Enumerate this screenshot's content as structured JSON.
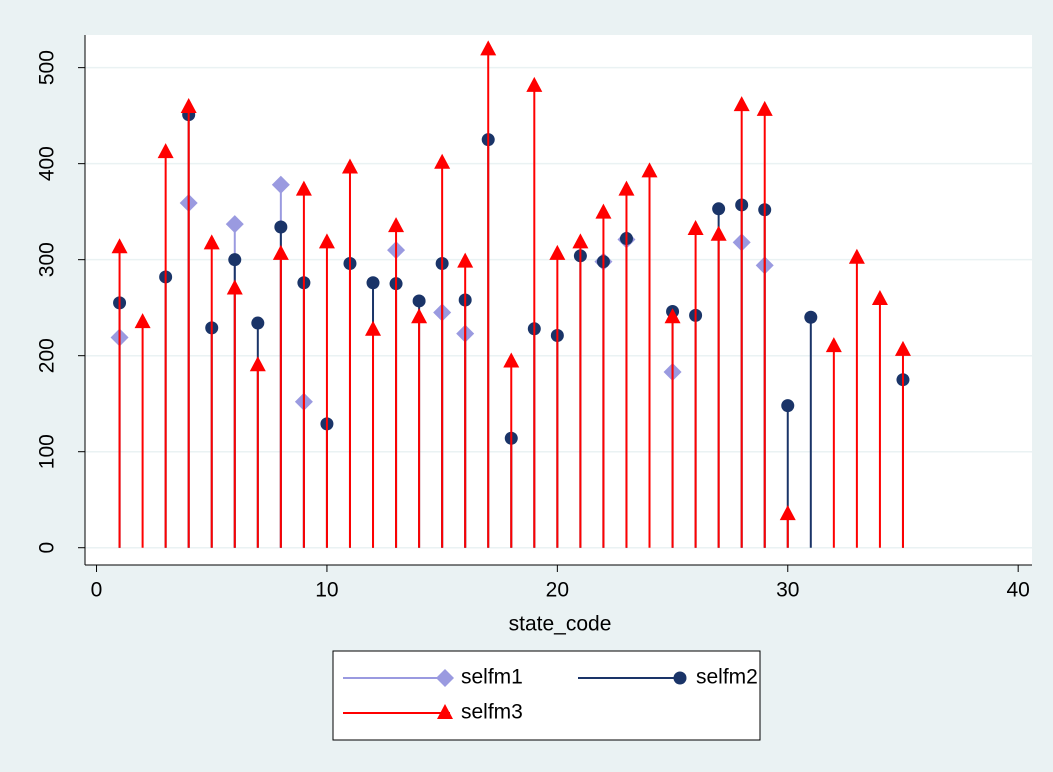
{
  "chart_data": {
    "type": "spike",
    "x_label": "state_code",
    "x": [
      1,
      2,
      3,
      4,
      5,
      6,
      7,
      8,
      9,
      10,
      11,
      12,
      13,
      14,
      15,
      16,
      17,
      18,
      19,
      20,
      21,
      22,
      23,
      24,
      25,
      26,
      27,
      28,
      29,
      30,
      31,
      32,
      33,
      34,
      35
    ],
    "series": [
      {
        "name": "selfm1",
        "color": "#9a9ae0",
        "marker": "diamond",
        "values": [
          219,
          null,
          null,
          359,
          null,
          337,
          null,
          378,
          152,
          null,
          null,
          null,
          310,
          null,
          245,
          223,
          null,
          null,
          null,
          null,
          null,
          298,
          321,
          null,
          183,
          null,
          null,
          318,
          294,
          null,
          null,
          null,
          null,
          null,
          null
        ]
      },
      {
        "name": "selfm2",
        "color": "#1a3468",
        "marker": "circle",
        "values": [
          255,
          null,
          282,
          451,
          229,
          300,
          234,
          334,
          276,
          129,
          296,
          276,
          275,
          257,
          296,
          258,
          425,
          114,
          228,
          221,
          304,
          298,
          322,
          null,
          246,
          242,
          353,
          357,
          352,
          148,
          240,
          null,
          null,
          null,
          175
        ]
      },
      {
        "name": "selfm3",
        "color": "#ff0000",
        "marker": "triangle",
        "values": [
          313,
          235,
          412,
          459,
          317,
          270,
          190,
          306,
          373,
          318,
          396,
          227,
          335,
          240,
          401,
          298,
          519,
          194,
          481,
          306,
          318,
          349,
          373,
          392,
          240,
          332,
          326,
          461,
          456,
          35,
          null,
          210,
          302,
          259,
          206
        ]
      }
    ],
    "xlim": [
      -0.5,
      40.6
    ],
    "ylim": [
      -18,
      534
    ],
    "xticks": [
      0,
      10,
      20,
      30,
      40
    ],
    "yticks": [
      0,
      100,
      200,
      300,
      400,
      500
    ],
    "grid": true,
    "legend": "bottom"
  }
}
